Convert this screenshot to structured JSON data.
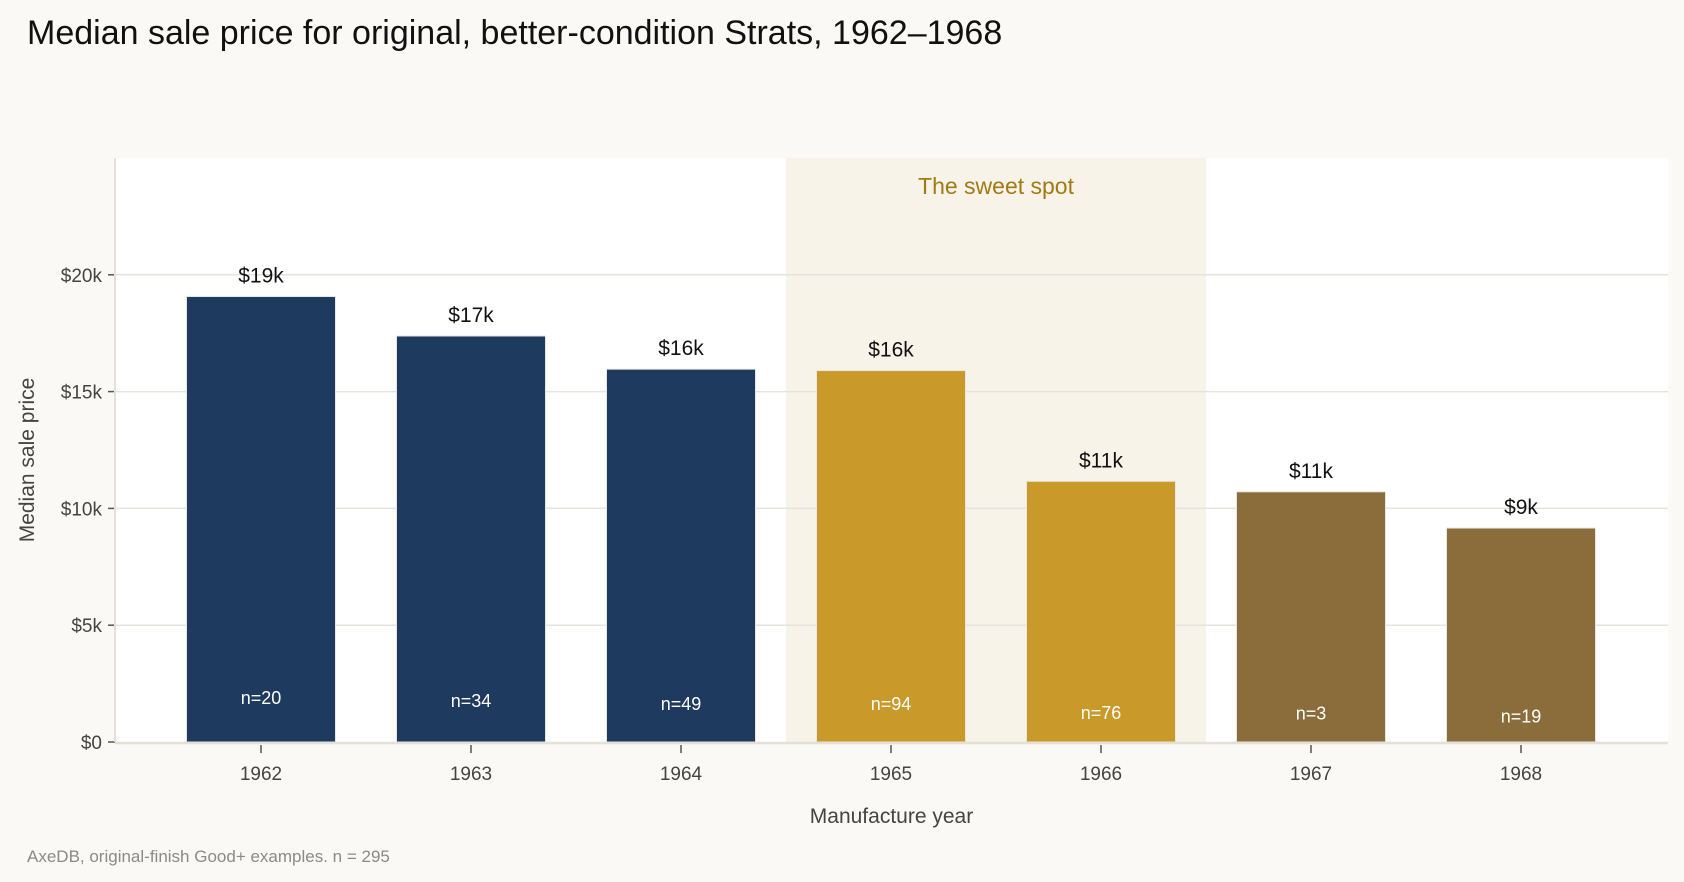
{
  "title": "Median sale price for original, better-condition Strats, 1962–1968",
  "caption": "AxeDB, original-finish Good+ examples. n = 295",
  "colors": {
    "background": "#faf9f5",
    "plot_background": "#ffffff",
    "early": "#1f3a5f",
    "sweet_spot": "#c99a2a",
    "late": "#8b6d3b",
    "highlight_band": "#f7f3e8",
    "annotation": "#a07a14",
    "grid": "#e6e3dd"
  },
  "chart_data": {
    "type": "bar",
    "title": "Median sale price for original, better-condition Strats, 1962–1968",
    "xlabel": "Manufacture year",
    "ylabel": "Median sale price",
    "categories": [
      "1962",
      "1963",
      "1964",
      "1965",
      "1966",
      "1967",
      "1968"
    ],
    "values": [
      19070,
      17380,
      15960,
      15900,
      11160,
      10710,
      9160
    ],
    "value_labels": [
      "$19k",
      "$17k",
      "$16k",
      "$16k",
      "$11k",
      "$11k",
      "$9k"
    ],
    "counts": [
      "n=20",
      "n=34",
      "n=49",
      "n=94",
      "n=76",
      "n=3",
      "n=19"
    ],
    "groups": [
      "early",
      "early",
      "early",
      "sweet_spot",
      "sweet_spot",
      "late",
      "late"
    ],
    "ylim": [
      0,
      25000
    ],
    "yticks": [
      0,
      5000,
      10000,
      15000,
      20000
    ],
    "ytick_labels": [
      "$0",
      "$5k",
      "$10k",
      "$15k",
      "$20k"
    ],
    "grid": true,
    "highlight": {
      "from": "1965",
      "to": "1966",
      "label": "The sweet spot"
    }
  }
}
